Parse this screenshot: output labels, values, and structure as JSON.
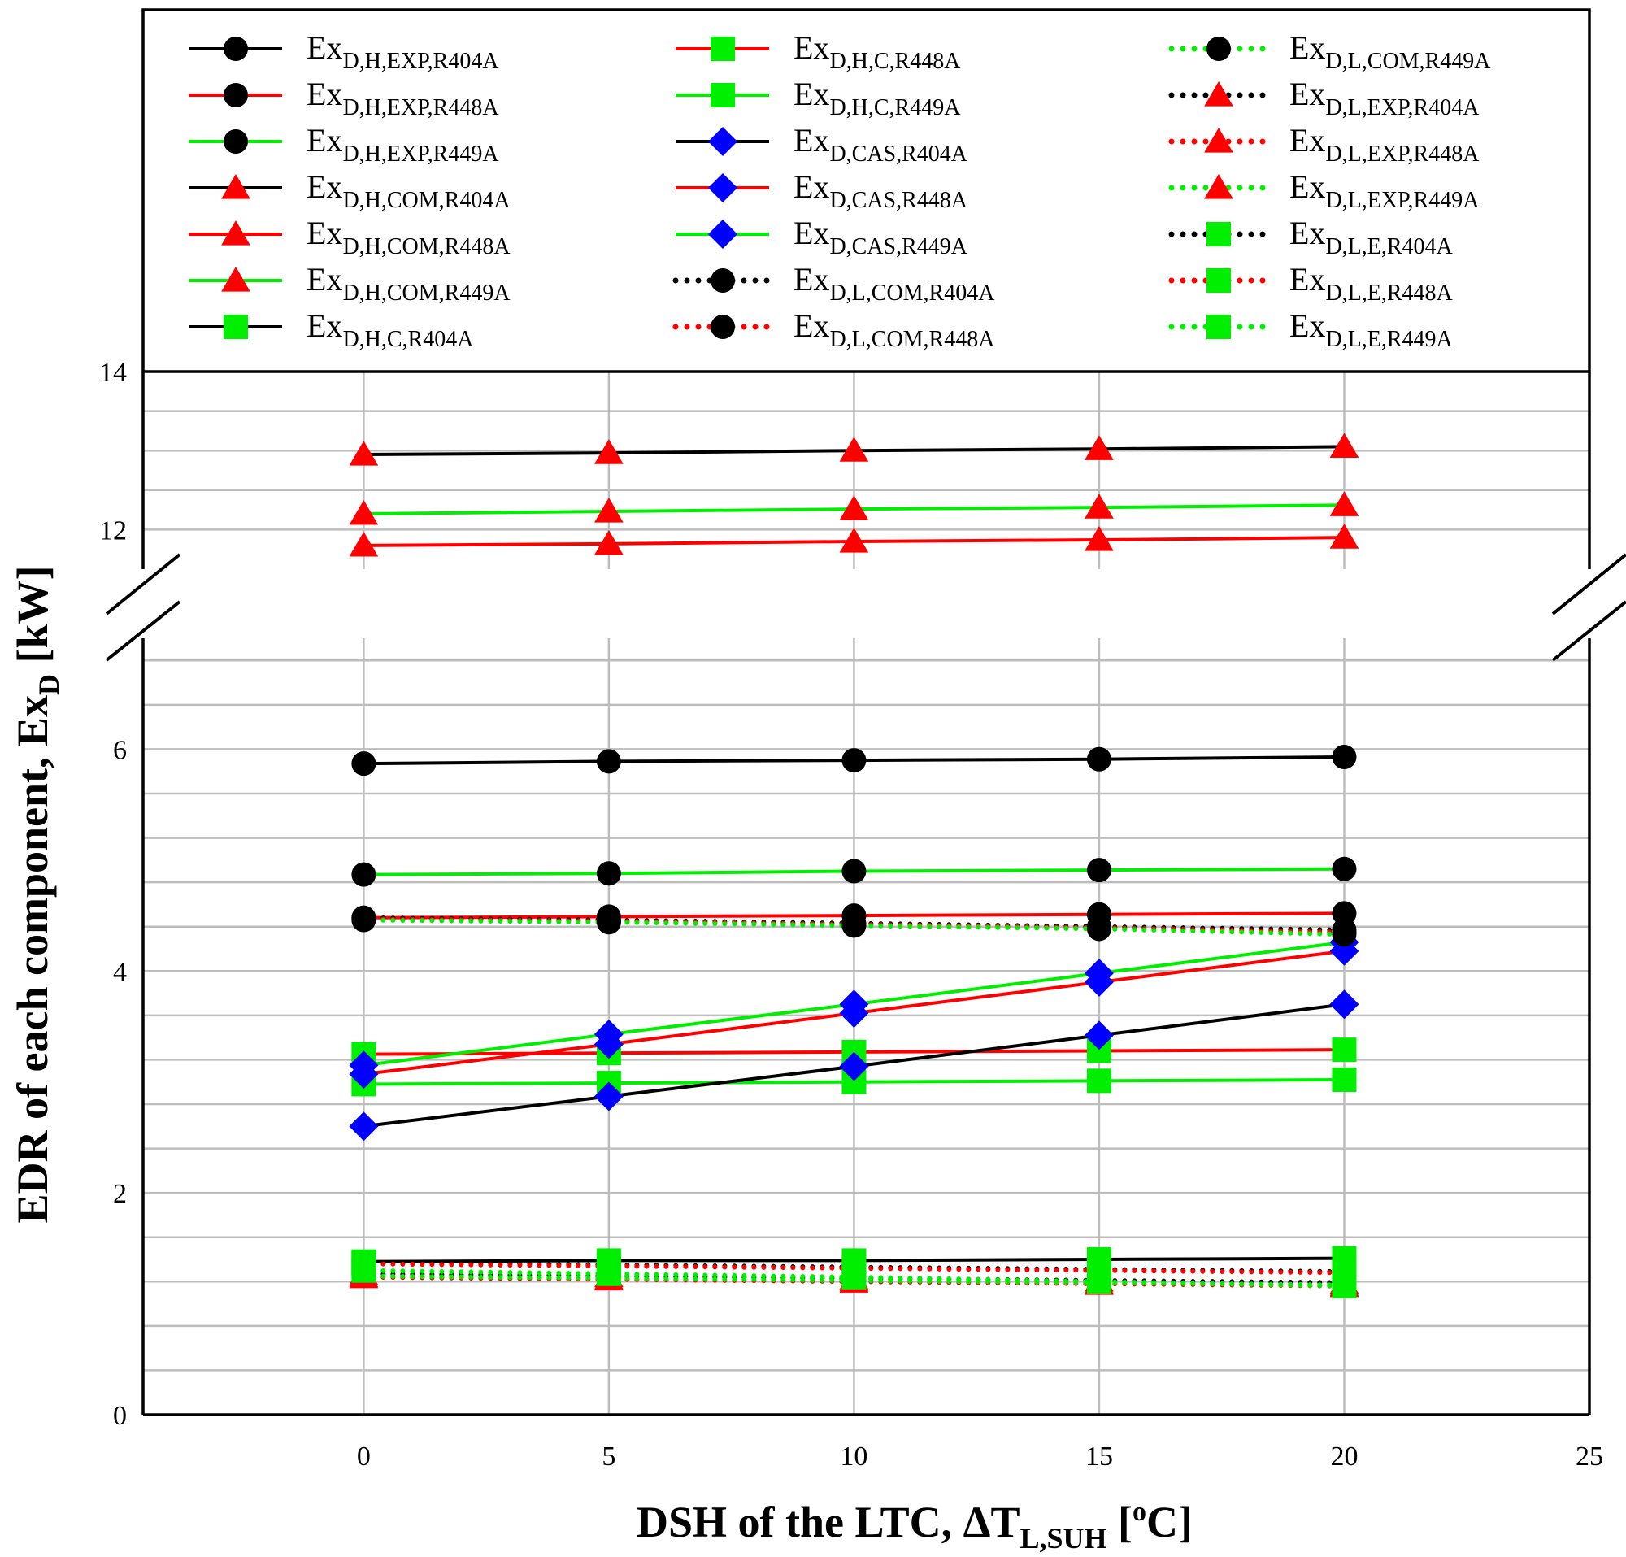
{
  "chart_data": {
    "type": "line",
    "xlabel": {
      "main": "DSH of the LTC, ΔT",
      "sub": "L,SUH",
      "unit_open": " [",
      "sup": "o",
      "unit_close": "C]"
    },
    "ylabel": {
      "main": "EDR of each component, Ex",
      "sub": "D",
      "unit": " [kW]"
    },
    "xlim": [
      -4.5,
      25
    ],
    "x_ticks": [
      0,
      5,
      10,
      15,
      20,
      25
    ],
    "y_ticks_lower": [
      0,
      2,
      4,
      6
    ],
    "y_ticks_upper": [
      12,
      14
    ],
    "axis_break": {
      "lower_max": 7,
      "upper_min": 11.5
    },
    "ylim": [
      0,
      14
    ],
    "grid": true,
    "legend_position": "top",
    "x": [
      0,
      5,
      10,
      15,
      20
    ],
    "colors": {
      "black": "#000000",
      "red": "#ff0000",
      "green": "#00ee00",
      "blue": "#0000ff"
    },
    "series": [
      {
        "label": "Ex",
        "sub": "D,H,EXP,R404A",
        "line": "black",
        "style": "solid",
        "marker": "circle",
        "markerColor": "black",
        "values": [
          5.87,
          5.89,
          5.9,
          5.91,
          5.93
        ]
      },
      {
        "label": "Ex",
        "sub": "D,H,EXP,R448A",
        "line": "red",
        "style": "solid",
        "marker": "circle",
        "markerColor": "black",
        "values": [
          4.48,
          4.49,
          4.5,
          4.51,
          4.52
        ]
      },
      {
        "label": "Ex",
        "sub": "D,H,EXP,R449A",
        "line": "green",
        "style": "solid",
        "marker": "circle",
        "markerColor": "black",
        "values": [
          4.87,
          4.88,
          4.9,
          4.91,
          4.92
        ]
      },
      {
        "label": "Ex",
        "sub": "D,H,COM,R404A",
        "line": "black",
        "style": "solid",
        "marker": "triangle",
        "markerColor": "red",
        "values": [
          12.95,
          12.97,
          13.0,
          13.02,
          13.05
        ]
      },
      {
        "label": "Ex",
        "sub": "D,H,COM,R448A",
        "line": "red",
        "style": "solid",
        "marker": "triangle",
        "markerColor": "red",
        "values": [
          11.8,
          11.82,
          11.85,
          11.87,
          11.9
        ]
      },
      {
        "label": "Ex",
        "sub": "D,H,COM,R449A",
        "line": "green",
        "style": "solid",
        "marker": "triangle",
        "markerColor": "red",
        "values": [
          12.2,
          12.23,
          12.26,
          12.28,
          12.31
        ]
      },
      {
        "label": "Ex",
        "sub": "D,H,C,R404A",
        "line": "black",
        "style": "solid",
        "marker": "square",
        "markerColor": "green",
        "values": [
          1.38,
          1.39,
          1.39,
          1.4,
          1.41
        ]
      },
      {
        "label": "Ex",
        "sub": "D,H,C,R448A",
        "line": "red",
        "style": "solid",
        "marker": "square",
        "markerColor": "green",
        "values": [
          3.25,
          3.26,
          3.27,
          3.28,
          3.29
        ]
      },
      {
        "label": "Ex",
        "sub": "D,H,C,R449A",
        "line": "green",
        "style": "solid",
        "marker": "square",
        "markerColor": "green",
        "values": [
          2.98,
          2.99,
          3.0,
          3.01,
          3.02
        ]
      },
      {
        "label": "Ex",
        "sub": "D,CAS,R404A",
        "line": "black",
        "style": "solid",
        "marker": "diamond",
        "markerColor": "blue",
        "values": [
          2.6,
          2.87,
          3.14,
          3.42,
          3.7
        ]
      },
      {
        "label": "Ex",
        "sub": "D,CAS,R448A",
        "line": "red",
        "style": "solid",
        "marker": "diamond",
        "markerColor": "blue",
        "values": [
          3.07,
          3.34,
          3.62,
          3.9,
          4.18
        ]
      },
      {
        "label": "Ex",
        "sub": "D,CAS,R449A",
        "line": "green",
        "style": "solid",
        "marker": "diamond",
        "markerColor": "blue",
        "values": [
          3.15,
          3.43,
          3.7,
          3.98,
          4.26
        ]
      },
      {
        "label": "Ex",
        "sub": "D,L,COM,R404A",
        "line": "black",
        "style": "dotted",
        "marker": "circle",
        "markerColor": "black",
        "values": [
          4.48,
          4.46,
          4.43,
          4.4,
          4.37
        ]
      },
      {
        "label": "Ex",
        "sub": "D,L,COM,R448A",
        "line": "red",
        "style": "dotted",
        "marker": "circle",
        "markerColor": "black",
        "values": [
          4.47,
          4.45,
          4.42,
          4.39,
          4.35
        ]
      },
      {
        "label": "Ex",
        "sub": "D,L,COM,R449A",
        "line": "green",
        "style": "dotted",
        "marker": "circle",
        "markerColor": "black",
        "values": [
          4.46,
          4.44,
          4.41,
          4.38,
          4.33
        ]
      },
      {
        "label": "Ex",
        "sub": "D,L,EXP,R404A",
        "line": "black",
        "style": "dotted",
        "marker": "triangle",
        "markerColor": "red",
        "values": [
          1.27,
          1.25,
          1.23,
          1.21,
          1.19
        ]
      },
      {
        "label": "Ex",
        "sub": "D,L,EXP,R448A",
        "line": "red",
        "style": "dotted",
        "marker": "triangle",
        "markerColor": "red",
        "values": [
          1.24,
          1.22,
          1.2,
          1.18,
          1.16
        ]
      },
      {
        "label": "Ex",
        "sub": "D,L,EXP,R449A",
        "line": "green",
        "style": "dotted",
        "marker": "triangle",
        "markerColor": "red",
        "values": [
          1.25,
          1.23,
          1.21,
          1.19,
          1.17
        ]
      },
      {
        "label": "Ex",
        "sub": "D,L,E,R404A",
        "line": "black",
        "style": "dotted",
        "marker": "square",
        "markerColor": "green",
        "values": [
          1.37,
          1.35,
          1.33,
          1.31,
          1.29
        ]
      },
      {
        "label": "Ex",
        "sub": "D,L,E,R448A",
        "line": "red",
        "style": "dotted",
        "marker": "square",
        "markerColor": "green",
        "values": [
          1.36,
          1.34,
          1.32,
          1.3,
          1.28
        ]
      },
      {
        "label": "Ex",
        "sub": "D,L,E,R449A",
        "line": "green",
        "style": "dotted",
        "marker": "square",
        "markerColor": "green",
        "values": [
          1.3,
          1.27,
          1.24,
          1.2,
          1.16
        ]
      }
    ]
  }
}
